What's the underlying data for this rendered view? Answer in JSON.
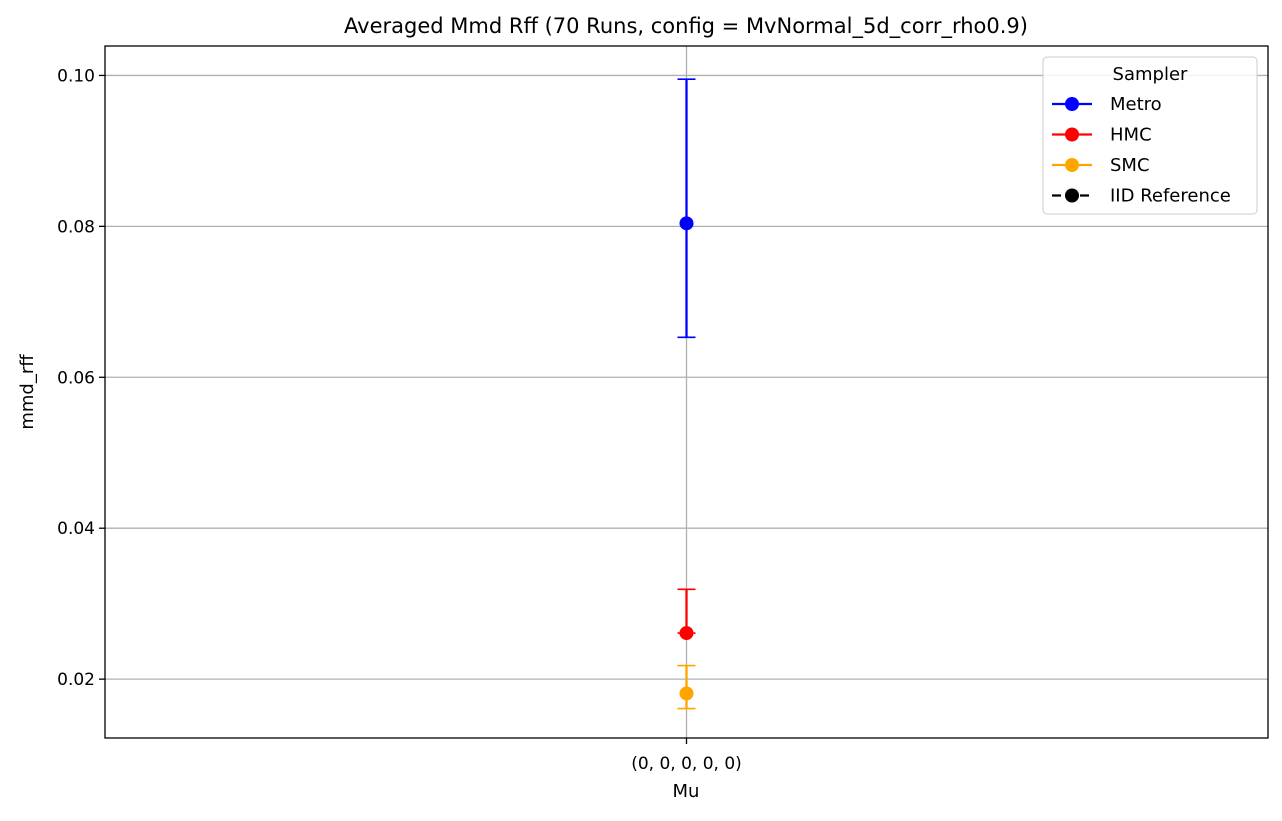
{
  "chart_data": {
    "type": "scatter",
    "title": "Averaged Mmd Rff (70 Runs, config = MvNormal_5d_corr_rho0.9)",
    "xlabel": "Mu",
    "ylabel": "mmd_rff",
    "categories": [
      "(0, 0, 0, 0, 0)"
    ],
    "ylim": [
      0.0122,
      0.1039
    ],
    "yticks": [
      0.02,
      0.04,
      0.06,
      0.08,
      0.1
    ],
    "ytick_labels": [
      "0.02",
      "0.04",
      "0.06",
      "0.08",
      "0.10"
    ],
    "grid": true,
    "legend": {
      "title": "Sampler",
      "placement": "top-right",
      "entries": [
        "Metro",
        "HMC",
        "SMC",
        "IID Reference"
      ]
    },
    "series": [
      {
        "name": "Metro",
        "color": "#0000ff",
        "linestyle": "solid",
        "values": [
          0.0804
        ],
        "err_low": [
          0.0653
        ],
        "err_high": [
          0.0995
        ]
      },
      {
        "name": "HMC",
        "color": "#ff0000",
        "linestyle": "solid",
        "values": [
          0.0261
        ],
        "err_low": [
          0.0261
        ],
        "err_high": [
          0.0319
        ]
      },
      {
        "name": "SMC",
        "color": "#ffa500",
        "linestyle": "solid",
        "values": [
          0.0181
        ],
        "err_low": [
          0.0161
        ],
        "err_high": [
          0.0218
        ]
      },
      {
        "name": "IID Reference",
        "color": "#000000",
        "linestyle": "dashed",
        "values": [],
        "err_low": [],
        "err_high": []
      }
    ]
  }
}
